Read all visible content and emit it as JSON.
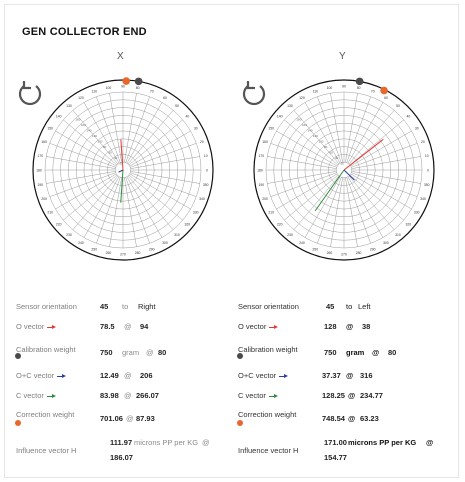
{
  "title": "GEN COLLECTOR END",
  "colors": {
    "o_vector": "#e53935",
    "oc_vector": "#2b3fa0",
    "c_vector": "#2e8b3a",
    "calibration_weight": "#4a4a4a",
    "correction_weight": "#e8672c"
  },
  "icons": {
    "rotate": "rotate-ccw-icon"
  },
  "plots": [
    {
      "label": "X",
      "vectors": {
        "o": [
          78.5,
          94
        ],
        "oc": [
          12.49,
          206
        ],
        "c": [
          83.98,
          266.07
        ]
      },
      "markers": {
        "calibration_angle": 80,
        "correction_angle": 87.93
      }
    },
    {
      "label": "Y",
      "vectors": {
        "o": [
          128,
          38
        ],
        "oc": [
          37.37,
          316
        ],
        "c": [
          128.25,
          234.77
        ]
      },
      "markers": {
        "calibration_angle": 80,
        "correction_angle": 63.23
      }
    }
  ],
  "panels": [
    {
      "sensor_orientation": {
        "label": "Sensor orientation",
        "value": "45",
        "to": "to",
        "direction": "Right"
      },
      "o_vector": {
        "label": "O vector",
        "mag": "78.5",
        "at": "@",
        "angle": "94"
      },
      "calibration_weight": {
        "label": "Calibration weight",
        "value": "750",
        "unit": "gram",
        "at": "@",
        "angle": "80"
      },
      "oc_vector": {
        "label": "O+C vector",
        "mag": "12.49",
        "at": "@",
        "angle": "206"
      },
      "c_vector": {
        "label": "C vector",
        "mag": "83.98",
        "at": "@",
        "angle": "266.07"
      },
      "correction_weight": {
        "label": "Correction weight",
        "mag": "701.06",
        "at": "@",
        "angle": "87.93"
      },
      "influence_vector": {
        "label": "Influence vector H",
        "mag": "111.97",
        "unit": "microns PP per KG",
        "at": "@",
        "angle": "186.07"
      }
    },
    {
      "sensor_orientation": {
        "label": "Sensor orientation",
        "value": "45",
        "to": "to",
        "direction": "Left"
      },
      "o_vector": {
        "label": "O vector",
        "mag": "128",
        "at": "@",
        "angle": "38"
      },
      "calibration_weight": {
        "label": "Calibration weight",
        "value": "750",
        "unit": "gram",
        "at": "@",
        "angle": "80"
      },
      "oc_vector": {
        "label": "O+C vector",
        "mag": "37.37",
        "at": "@",
        "angle": "316"
      },
      "c_vector": {
        "label": "C vector",
        "mag": "128.25",
        "at": "@",
        "angle": "234.77"
      },
      "correction_weight": {
        "label": "Correction weight",
        "mag": "748.54",
        "at": "@",
        "angle": "63.23"
      },
      "influence_vector": {
        "label": "Influence vector H",
        "mag": "171.00",
        "unit": "microns PP per KG",
        "at": "@",
        "angle": "154.77"
      }
    }
  ]
}
